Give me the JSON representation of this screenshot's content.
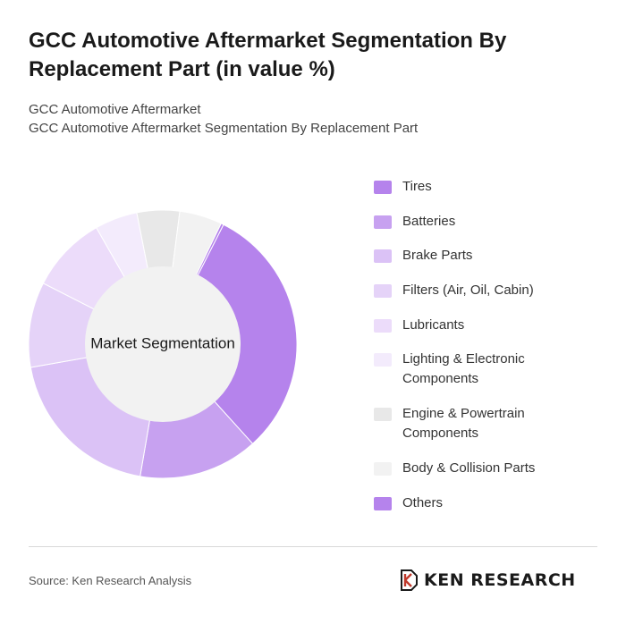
{
  "title": "GCC Automotive Aftermarket Segmentation By Replacement Part (in value %)",
  "subtitle_lines": [
    "GCC Automotive Aftermarket",
    "GCC Automotive Aftermarket Segmentation By Replacement Part"
  ],
  "center_label": "Market Segmentation",
  "source": "Source: Ken Research Analysis",
  "brand": "KEN RESEARCH",
  "chart_data": {
    "type": "pie",
    "donut": true,
    "legend_position": "right",
    "series": [
      {
        "name": "Tires",
        "value": 30,
        "color": "#b583ec"
      },
      {
        "name": "Batteries",
        "value": 14,
        "color": "#c7a1f0"
      },
      {
        "name": "Brake Parts",
        "value": 19,
        "color": "#dbc2f6"
      },
      {
        "name": "Filters (Air, Oil, Cabin)",
        "value": 10,
        "color": "#e5d3f8"
      },
      {
        "name": "Lubricants",
        "value": 9,
        "color": "#ecdcfa"
      },
      {
        "name": "Lighting & Electronic Components",
        "value": 5,
        "color": "#f3ebfc"
      },
      {
        "name": "Engine & Powertrain Components",
        "value": 5,
        "color": "#e8e8e8"
      },
      {
        "name": "Body & Collision Parts",
        "value": 5,
        "color": "#f2f2f2"
      },
      {
        "name": "Others",
        "value": 0.3,
        "color": "#b583ec"
      }
    ]
  }
}
